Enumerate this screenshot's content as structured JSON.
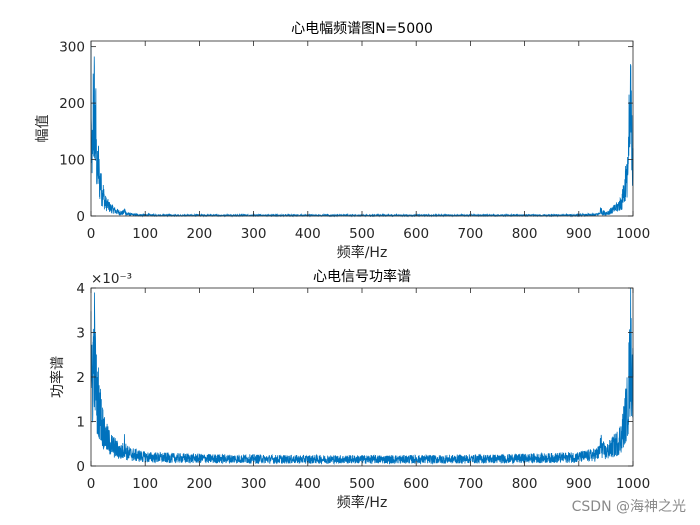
{
  "watermark": "CSDN @海神之光",
  "colors": {
    "line": "#0072BD",
    "axis": "#262626",
    "background": "#ffffff"
  },
  "chart_data": [
    {
      "type": "line",
      "title": "心电幅频谱图N=5000",
      "xlabel": "频率/Hz",
      "ylabel": "幅值",
      "xlim": [
        0,
        1000
      ],
      "ylim": [
        0,
        310
      ],
      "xticks": [
        "0",
        "100",
        "200",
        "300",
        "400",
        "500",
        "600",
        "700",
        "800",
        "900",
        "1000"
      ],
      "yticks": [
        "0",
        "100",
        "200",
        "300"
      ],
      "exponent_label": "",
      "grid": false,
      "legend": "none",
      "series": [
        {
          "x": [
            0,
            1,
            2,
            3,
            4,
            5,
            6,
            7,
            8,
            9,
            10,
            12,
            14,
            16,
            18,
            20,
            22,
            25,
            30,
            35,
            40,
            45,
            50,
            55,
            60,
            62,
            65,
            70,
            80,
            100,
            150,
            200,
            250,
            300,
            350,
            400,
            450,
            500,
            550,
            600,
            650,
            700,
            750,
            800,
            850,
            900,
            930,
            935,
            938,
            940,
            945,
            950,
            955,
            960,
            965,
            970,
            975,
            980,
            982,
            984,
            986,
            988,
            990,
            991,
            992,
            993,
            994,
            995,
            996,
            997,
            998,
            999,
            1000
          ],
          "y": [
            300,
            60,
            120,
            80,
            190,
            150,
            200,
            170,
            130,
            160,
            100,
            75,
            90,
            55,
            65,
            35,
            45,
            25,
            20,
            15,
            12,
            9,
            7,
            5,
            6,
            10,
            4,
            3,
            2,
            1.5,
            1,
            1,
            1,
            1,
            1,
            1,
            1,
            1,
            1,
            1,
            1,
            1,
            1,
            1,
            1,
            1.5,
            2,
            3,
            4,
            10,
            6,
            5,
            7,
            9,
            12,
            15,
            20,
            25,
            45,
            35,
            65,
            55,
            90,
            75,
            100,
            160,
            130,
            170,
            200,
            150,
            190,
            80,
            120
          ]
        }
      ]
    },
    {
      "type": "line",
      "title": "心电信号功率谱",
      "xlabel": "频率/Hz",
      "ylabel": "功率谱",
      "xlim": [
        0,
        1000
      ],
      "ylim": [
        0,
        0.004
      ],
      "xticks": [
        "0",
        "100",
        "200",
        "300",
        "400",
        "500",
        "600",
        "700",
        "800",
        "900",
        "1000"
      ],
      "yticks": [
        "0",
        "1",
        "2",
        "3",
        "4"
      ],
      "exponent_label": "×10⁻³",
      "grid": false,
      "legend": "none",
      "series": [
        {
          "x": [
            0,
            1,
            2,
            3,
            4,
            5,
            6,
            7,
            8,
            9,
            10,
            12,
            14,
            16,
            18,
            20,
            22,
            25,
            30,
            35,
            40,
            45,
            50,
            55,
            60,
            62,
            65,
            70,
            80,
            100,
            150,
            200,
            250,
            300,
            350,
            400,
            450,
            500,
            550,
            600,
            650,
            700,
            750,
            800,
            850,
            900,
            930,
            935,
            938,
            940,
            945,
            950,
            955,
            960,
            965,
            970,
            975,
            980,
            982,
            984,
            986,
            988,
            990,
            991,
            992,
            993,
            994,
            995,
            996,
            997,
            998,
            999,
            1000
          ],
          "y": [
            0.0036,
            0.0016,
            0.002,
            0.0018,
            0.0026,
            0.0022,
            0.0028,
            0.0024,
            0.002,
            0.0022,
            0.0017,
            0.0014,
            0.0015,
            0.0011,
            0.0012,
            0.0009,
            0.0009,
            0.0007,
            0.0006,
            0.0005,
            0.00045,
            0.0004,
            0.00035,
            0.0003,
            0.00035,
            0.0005,
            0.0003,
            0.00028,
            0.00025,
            0.0002,
            0.00018,
            0.00017,
            0.00016,
            0.00016,
            0.00015,
            0.00015,
            0.00015,
            0.00015,
            0.00015,
            0.00015,
            0.00015,
            0.00016,
            0.00016,
            0.00017,
            0.00018,
            0.0002,
            0.00025,
            0.00028,
            0.0003,
            0.0005,
            0.00035,
            0.0003,
            0.00035,
            0.0004,
            0.00045,
            0.0005,
            0.0006,
            0.0007,
            0.0009,
            0.0009,
            0.0012,
            0.0011,
            0.0015,
            0.0014,
            0.0017,
            0.0022,
            0.002,
            0.0024,
            0.0028,
            0.0022,
            0.0026,
            0.0018,
            0.002
          ]
        }
      ]
    }
  ]
}
